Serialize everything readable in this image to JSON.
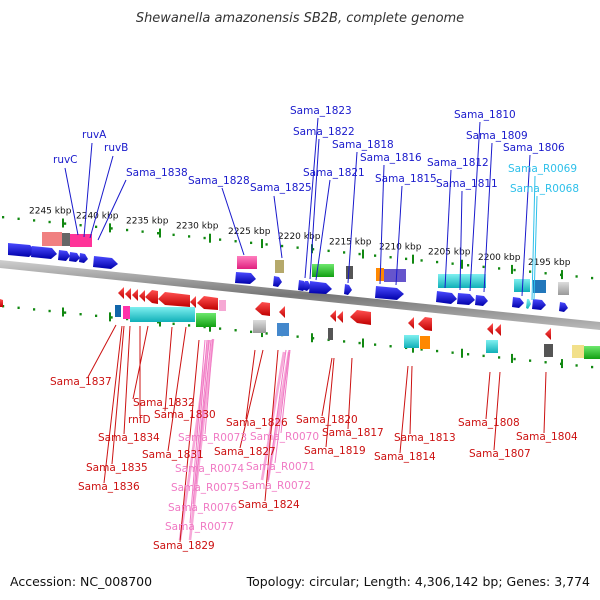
{
  "title": "Shewanella amazonensis SB2B, complete genome",
  "footer": {
    "accession": "Accession: NC_008700",
    "summary": "Topology: circular; Length: 4,306,142 bp; Genes: 3,774"
  },
  "ticks": [
    "2245 kbp",
    "2240 kbp",
    "2235 kbp",
    "2230 kbp",
    "2225 kbp",
    "2220 kbp",
    "2215 kbp",
    "2210 kbp",
    "2205 kbp",
    "2200 kbp",
    "2195 kbp"
  ],
  "labels_top": [
    {
      "text": "ruvC",
      "color": "blue"
    },
    {
      "text": "ruvA",
      "color": "blue"
    },
    {
      "text": "ruvB",
      "color": "blue"
    },
    {
      "text": "Sama_1838",
      "color": "blue"
    },
    {
      "text": "Sama_1828",
      "color": "blue"
    },
    {
      "text": "Sama_1825",
      "color": "blue"
    },
    {
      "text": "Sama_1823",
      "color": "blue"
    },
    {
      "text": "Sama_1822",
      "color": "blue"
    },
    {
      "text": "Sama_1821",
      "color": "blue"
    },
    {
      "text": "Sama_1818",
      "color": "blue"
    },
    {
      "text": "Sama_1816",
      "color": "blue"
    },
    {
      "text": "Sama_1815",
      "color": "blue"
    },
    {
      "text": "Sama_1812",
      "color": "blue"
    },
    {
      "text": "Sama_1811",
      "color": "blue"
    },
    {
      "text": "Sama_1810",
      "color": "blue"
    },
    {
      "text": "Sama_1809",
      "color": "blue"
    },
    {
      "text": "Sama_1806",
      "color": "blue"
    },
    {
      "text": "Sama_R0069",
      "color": "cyan"
    },
    {
      "text": "Sama_R0068",
      "color": "cyan"
    }
  ],
  "labels_bottom": [
    {
      "text": "Sama_1837",
      "color": "red"
    },
    {
      "text": "Sama_1832",
      "color": "red"
    },
    {
      "text": "rnfD",
      "color": "red"
    },
    {
      "text": "Sama_1830",
      "color": "red"
    },
    {
      "text": "Sama_1834",
      "color": "red"
    },
    {
      "text": "Sama_1831",
      "color": "red"
    },
    {
      "text": "Sama_1835",
      "color": "red"
    },
    {
      "text": "Sama_1836",
      "color": "red"
    },
    {
      "text": "Sama_R0073",
      "color": "pink"
    },
    {
      "text": "Sama_R0074",
      "color": "pink"
    },
    {
      "text": "Sama_R0075",
      "color": "pink"
    },
    {
      "text": "Sama_R0076",
      "color": "pink"
    },
    {
      "text": "Sama_R0077",
      "color": "pink"
    },
    {
      "text": "Sama_1829",
      "color": "red"
    },
    {
      "text": "Sama_1826",
      "color": "red"
    },
    {
      "text": "Sama_R0070",
      "color": "pink"
    },
    {
      "text": "Sama_1827",
      "color": "red"
    },
    {
      "text": "Sama_R0071",
      "color": "pink"
    },
    {
      "text": "Sama_R0072",
      "color": "pink"
    },
    {
      "text": "Sama_1824",
      "color": "red"
    },
    {
      "text": "Sama_1820",
      "color": "red"
    },
    {
      "text": "Sama_1817",
      "color": "red"
    },
    {
      "text": "Sama_1819",
      "color": "red"
    },
    {
      "text": "Sama_1813",
      "color": "red"
    },
    {
      "text": "Sama_1814",
      "color": "red"
    },
    {
      "text": "Sama_1808",
      "color": "red"
    },
    {
      "text": "Sama_1807",
      "color": "red"
    },
    {
      "text": "Sama_1804",
      "color": "red"
    }
  ],
  "colors": {
    "forward_gene": "#0000dd",
    "reverse_gene": "#ee0000",
    "rna_gene": "#ff99cc",
    "trna_label": "#2ec0ea",
    "backbone": "#888888",
    "tick": "#118811"
  }
}
